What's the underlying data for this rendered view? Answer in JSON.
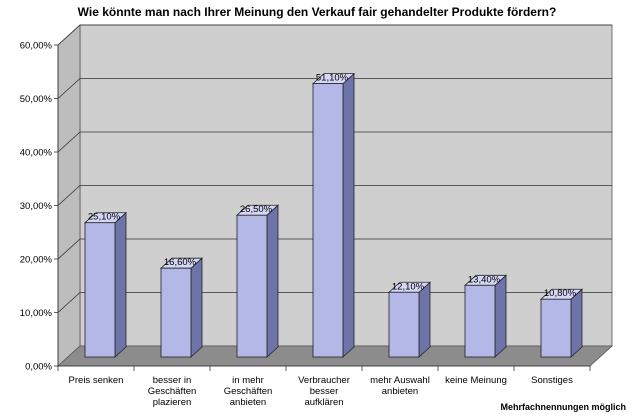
{
  "chart_data": {
    "type": "bar",
    "title": "Wie könnte man nach Ihrer Meinung den Verkauf fair gehandelter Produkte fördern?",
    "categories": [
      [
        "Preis senken"
      ],
      [
        "besser in",
        "Geschäften",
        "plazieren"
      ],
      [
        "in mehr",
        "Geschäften",
        "anbieten"
      ],
      [
        "Verbraucher",
        "besser",
        "aufklären"
      ],
      [
        "mehr Auswahl",
        "anbieten"
      ],
      [
        "keine Meinung"
      ],
      [
        "Sonstiges"
      ]
    ],
    "values": [
      25.1,
      16.6,
      26.5,
      51.1,
      12.1,
      13.4,
      10.8
    ],
    "value_labels": [
      "25,10%",
      "16,60%",
      "26,50%",
      "51,10%",
      "12,10%",
      "13,40%",
      "10,80%"
    ],
    "yticks": [
      0,
      10,
      20,
      30,
      40,
      50,
      60
    ],
    "ytick_labels": [
      "0,00%",
      "10,00%",
      "20,00%",
      "30,00%",
      "40,00%",
      "50,00%",
      "60,00%"
    ],
    "ylim": [
      0,
      60
    ],
    "xlabel": "",
    "ylabel": "",
    "grid": true,
    "colors": {
      "bar_front": "#b3b8e6",
      "bar_side": "#6e73a8",
      "bar_top": "#d4d7f5",
      "wall": "#cfcfcf",
      "floor": "#8c8c8c",
      "grid": "#333333"
    }
  },
  "footnote": "Mehrfachnennungen möglich"
}
